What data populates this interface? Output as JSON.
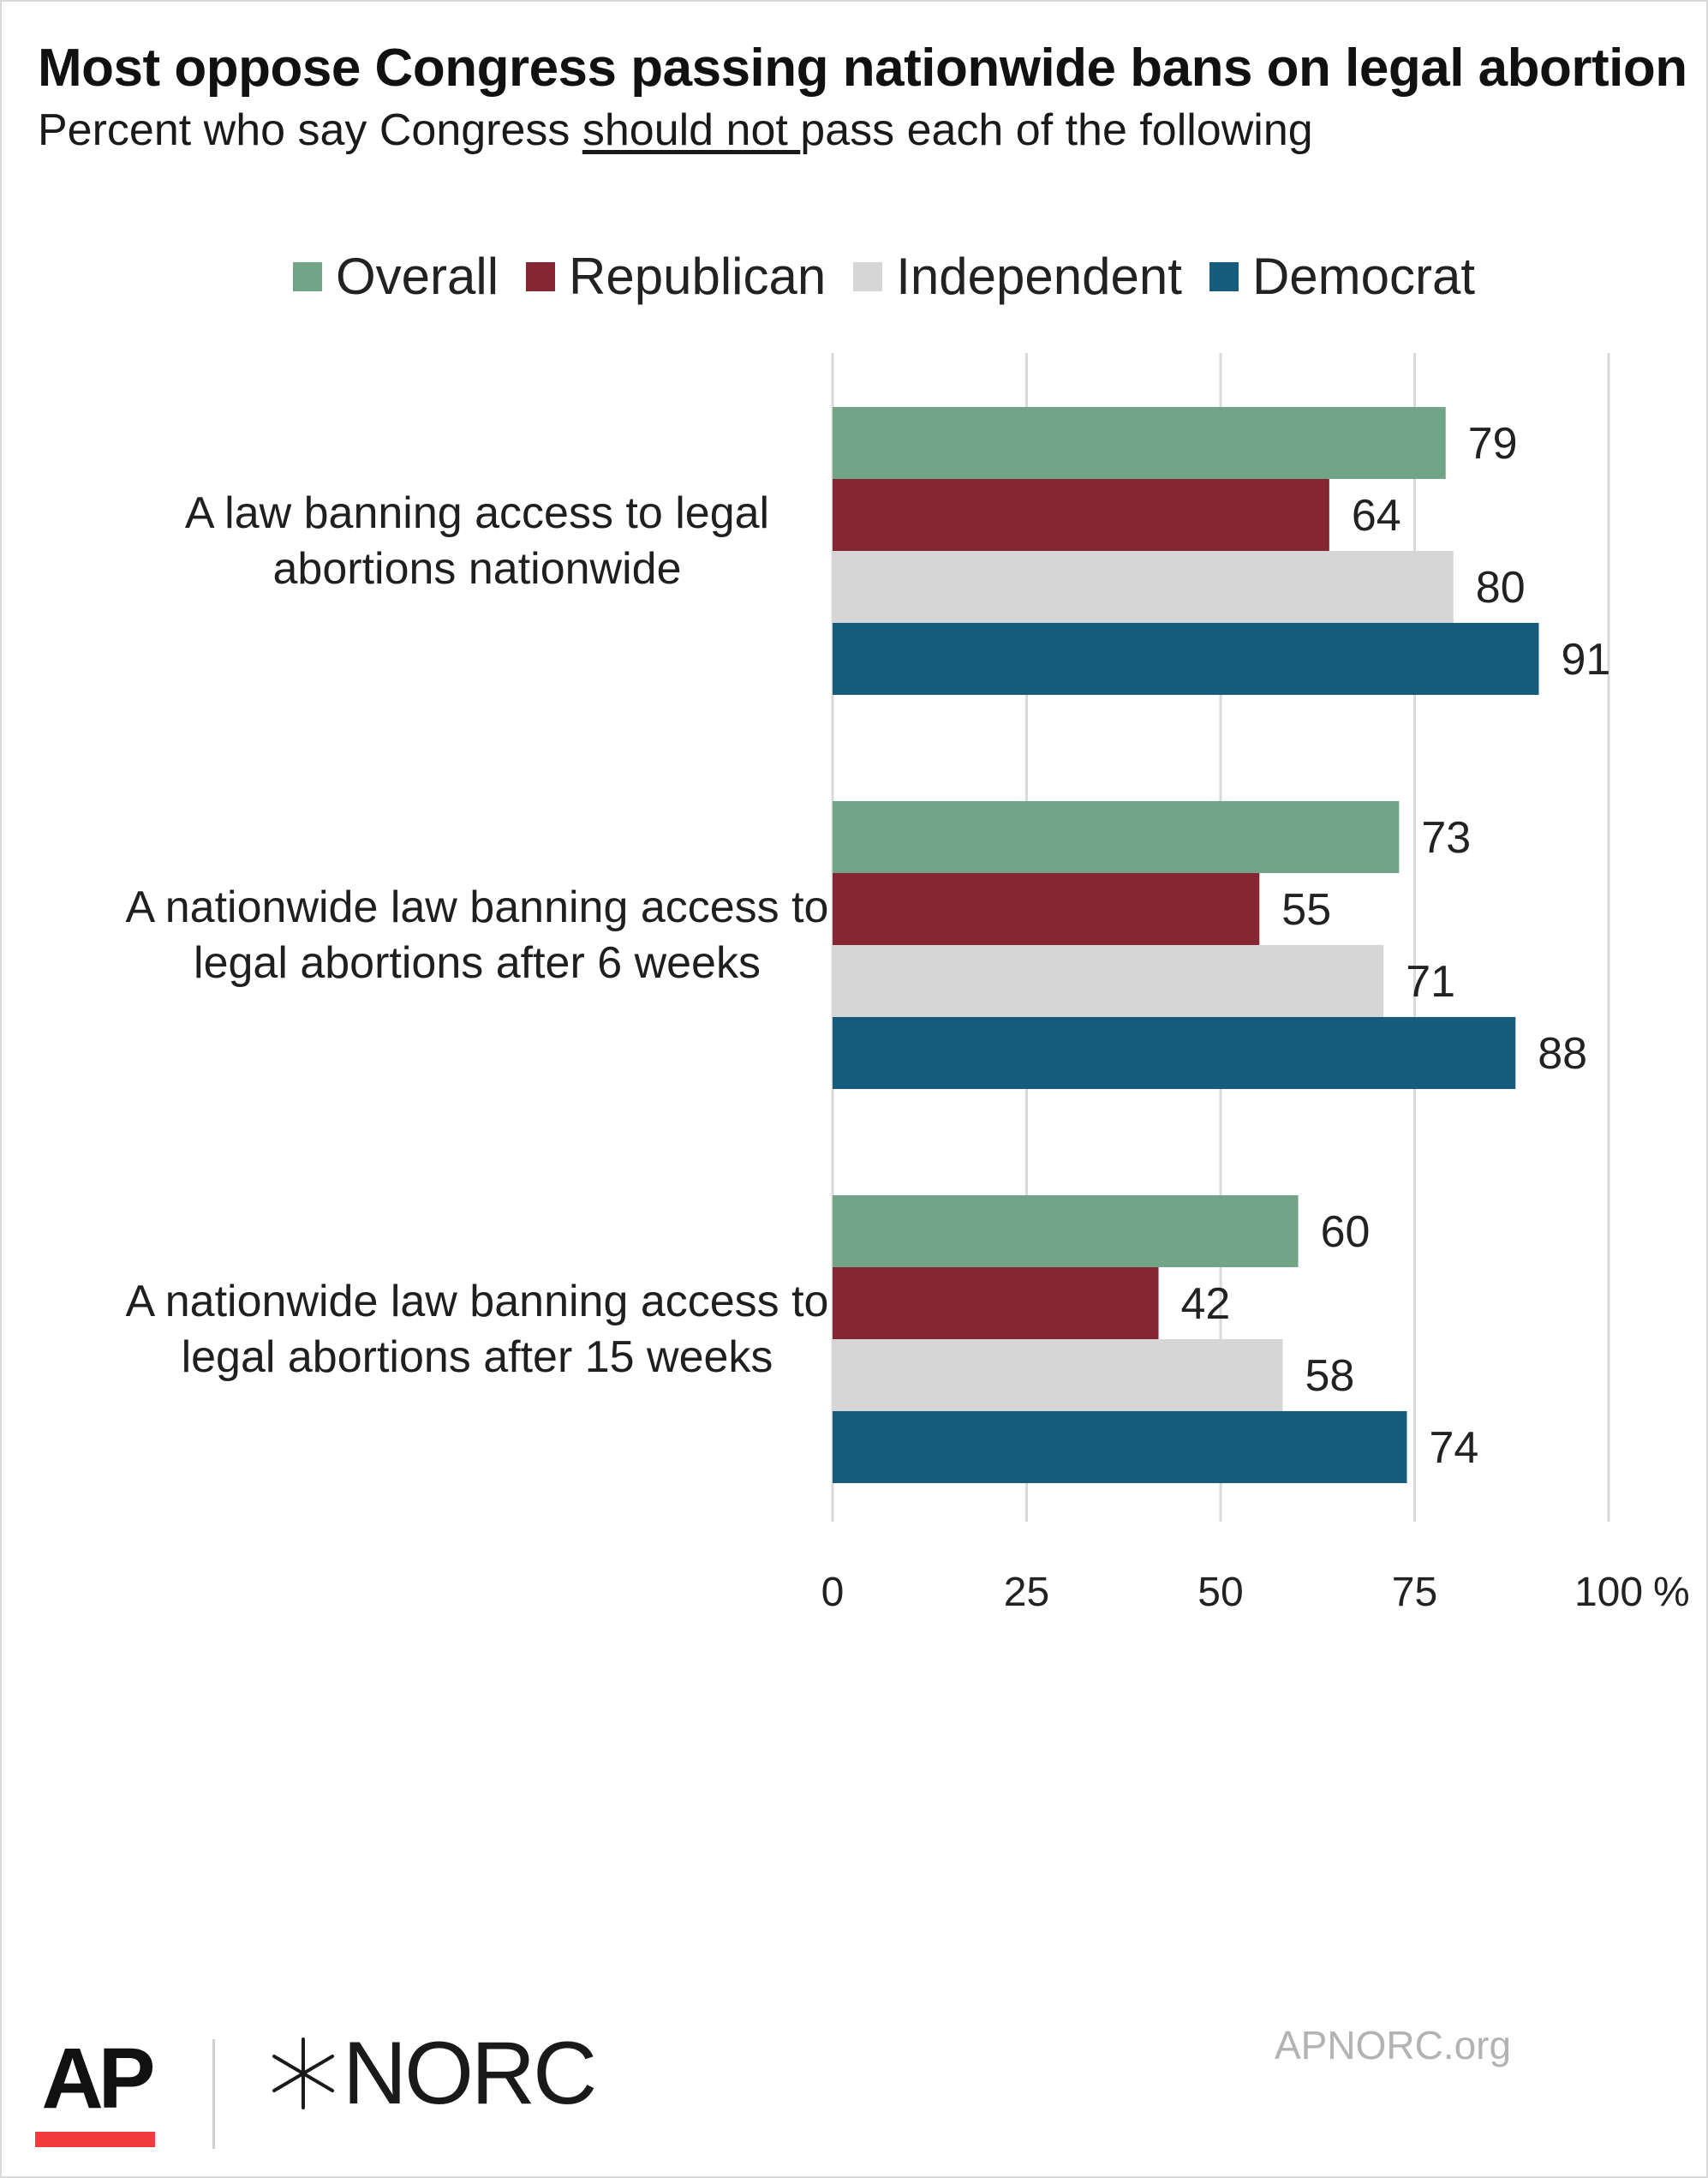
{
  "header": {
    "title": "Most oppose Congress passing nationwide bans on legal abortion",
    "subtitle_before": "Percent who say Congress ",
    "subtitle_underlined": "should not ",
    "subtitle_after": "pass each of the following"
  },
  "chart_data": {
    "type": "bar",
    "orientation": "horizontal",
    "categories": [
      [
        "A law banning access to legal",
        "abortions nationwide"
      ],
      [
        "A nationwide law banning access to",
        "legal abortions after 6 weeks"
      ],
      [
        "A nationwide law banning access to",
        "legal abortions after 15 weeks"
      ]
    ],
    "series": [
      {
        "name": "Overall",
        "color": "#72a487",
        "values": [
          79,
          73,
          60
        ]
      },
      {
        "name": "Republican",
        "color": "#862633",
        "values": [
          64,
          55,
          42
        ]
      },
      {
        "name": "Independent",
        "color": "#d6d6d6",
        "values": [
          80,
          71,
          58
        ]
      },
      {
        "name": "Democrat",
        "color": "#165c7d",
        "values": [
          91,
          88,
          74
        ]
      }
    ],
    "xlim": [
      0,
      100
    ],
    "xticks": [
      "0",
      "25",
      "50",
      "75",
      "100"
    ],
    "xunit": "%",
    "grid": true,
    "legend": "top-center"
  },
  "footer": {
    "ap_logo": "AP",
    "norc_logo": "NORC",
    "site": "APNORC.org"
  }
}
